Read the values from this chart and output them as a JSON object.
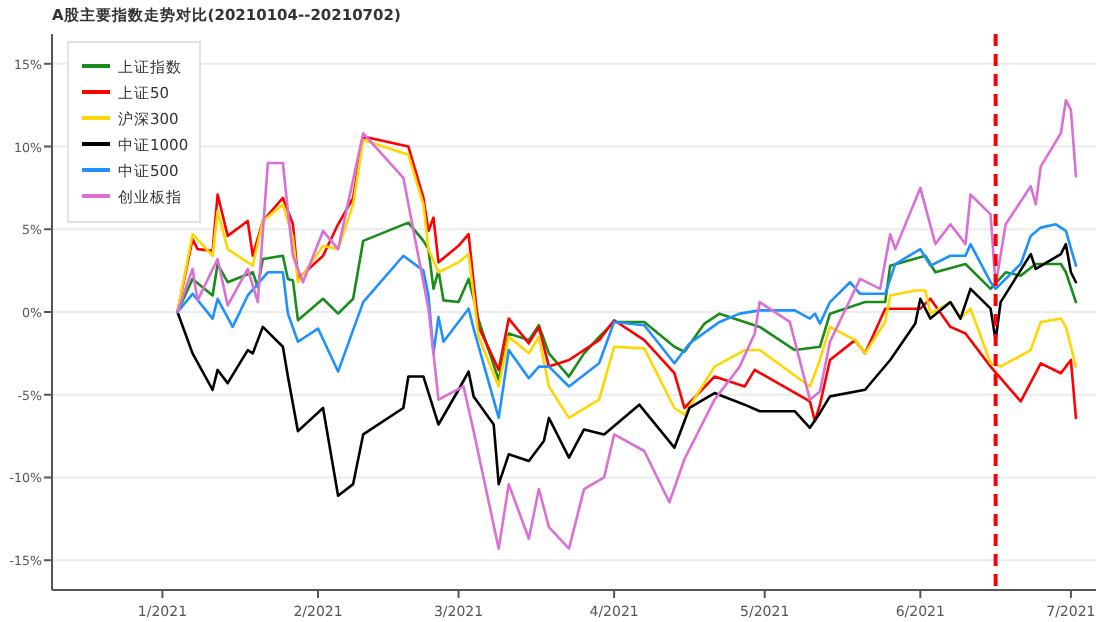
{
  "chart_data": {
    "type": "line",
    "title": "A股主要指数走势对比(20210104--20210702)",
    "xlim": [
      "2020-12-10",
      "2021-07-06"
    ],
    "xticks": [
      {
        "value": "2021-01-01",
        "label": "1/2021"
      },
      {
        "value": "2021-02-01",
        "label": "2/2021"
      },
      {
        "value": "2021-03-01",
        "label": "3/2021"
      },
      {
        "value": "2021-04-01",
        "label": "4/2021"
      },
      {
        "value": "2021-05-01",
        "label": "5/2021"
      },
      {
        "value": "2021-06-01",
        "label": "6/2021"
      },
      {
        "value": "2021-07-01",
        "label": "7/2021"
      }
    ],
    "ylim": [
      -16.8,
      16.8
    ],
    "yticks": [
      {
        "value": -15,
        "label": "-15%"
      },
      {
        "value": -10,
        "label": "-10%"
      },
      {
        "value": -5,
        "label": "-5%"
      },
      {
        "value": 0,
        "label": "0%"
      },
      {
        "value": 5,
        "label": "5%"
      },
      {
        "value": 10,
        "label": "10%"
      },
      {
        "value": 15,
        "label": "15%"
      }
    ],
    "grid": "y",
    "legend": "top left",
    "marker": "none",
    "line_style": "solid",
    "ref_lines": [
      {
        "axis": "x",
        "value": "2021-06-16",
        "label": null,
        "color": "#ff0000",
        "line_style": "dashed"
      }
    ],
    "series": [
      {
        "name": "上证指数",
        "color": "#1a8c1a",
        "x": [
          "2021-01-04",
          "2021-01-07",
          "2021-01-11",
          "2021-01-12",
          "2021-01-14",
          "2021-01-19",
          "2021-01-20",
          "2021-01-21",
          "2021-01-25",
          "2021-01-26",
          "2021-01-27",
          "2021-01-28",
          "2021-02-02",
          "2021-02-05",
          "2021-02-08",
          "2021-02-10",
          "2021-02-19",
          "2021-02-22",
          "2021-02-23",
          "2021-02-24",
          "2021-02-25",
          "2021-02-26",
          "2021-03-01",
          "2021-03-03",
          "2021-03-04",
          "2021-03-05",
          "2021-03-09",
          "2021-03-11",
          "2021-03-15",
          "2021-03-17",
          "2021-03-19",
          "2021-03-23",
          "2021-03-26",
          "2021-03-29",
          "2021-04-01",
          "2021-04-07",
          "2021-04-13",
          "2021-04-15",
          "2021-04-19",
          "2021-04-22",
          "2021-04-30",
          "2021-05-07",
          "2021-05-12",
          "2021-05-14",
          "2021-05-21",
          "2021-05-25",
          "2021-05-26",
          "2021-06-02",
          "2021-06-04",
          "2021-06-10",
          "2021-06-15",
          "2021-06-18",
          "2021-06-21",
          "2021-06-24",
          "2021-06-29",
          "2021-06-30",
          "2021-07-02"
        ],
        "values": [
          0,
          2.0,
          1.0,
          2.9,
          1.8,
          2.4,
          1.5,
          3.2,
          3.4,
          2.0,
          1.9,
          -0.5,
          0.8,
          -0.1,
          0.8,
          4.3,
          5.4,
          4.3,
          3.8,
          1.4,
          2.5,
          0.7,
          0.6,
          2.0,
          0.8,
          -0.5,
          -4.1,
          -1.3,
          -1.7,
          -0.8,
          -2.5,
          -3.9,
          -2.5,
          -1.5,
          -0.6,
          -0.6,
          -2.1,
          -2.4,
          -0.7,
          -0.1,
          -0.9,
          -2.3,
          -2.1,
          -0.1,
          0.6,
          0.6,
          2.8,
          3.4,
          2.4,
          2.9,
          1.4,
          2.4,
          2.2,
          2.9,
          2.9,
          2.4,
          0.6
        ]
      },
      {
        "name": "上证50",
        "color": "#ff0000",
        "x": [
          "2021-01-04",
          "2021-01-07",
          "2021-01-08",
          "2021-01-11",
          "2021-01-12",
          "2021-01-14",
          "2021-01-18",
          "2021-01-19",
          "2021-01-21",
          "2021-01-25",
          "2021-01-27",
          "2021-01-28",
          "2021-02-02",
          "2021-02-05",
          "2021-02-08",
          "2021-02-10",
          "2021-02-19",
          "2021-02-22",
          "2021-02-23",
          "2021-02-24",
          "2021-02-25",
          "2021-03-01",
          "2021-03-03",
          "2021-03-04",
          "2021-03-05",
          "2021-03-09",
          "2021-03-11",
          "2021-03-15",
          "2021-03-17",
          "2021-03-19",
          "2021-03-23",
          "2021-03-29",
          "2021-04-01",
          "2021-04-07",
          "2021-04-13",
          "2021-04-15",
          "2021-04-21",
          "2021-04-27",
          "2021-04-29",
          "2021-05-10",
          "2021-05-11",
          "2021-05-12",
          "2021-05-14",
          "2021-05-19",
          "2021-05-21",
          "2021-05-25",
          "2021-06-01",
          "2021-06-03",
          "2021-06-07",
          "2021-06-10",
          "2021-06-15",
          "2021-06-21",
          "2021-06-25",
          "2021-06-29",
          "2021-07-01",
          "2021-07-02"
        ],
        "values": [
          0,
          4.4,
          3.8,
          3.7,
          7.1,
          4.6,
          5.5,
          3.4,
          5.5,
          6.9,
          5.3,
          2.0,
          3.4,
          5.3,
          6.9,
          10.6,
          10.0,
          6.9,
          4.9,
          5.7,
          3.0,
          4.0,
          4.7,
          1.8,
          -0.9,
          -3.5,
          -0.4,
          -1.9,
          -0.9,
          -3.3,
          -2.9,
          -1.7,
          -0.5,
          -1.7,
          -3.7,
          -5.8,
          -3.9,
          -4.5,
          -3.5,
          -5.4,
          -6.6,
          -5.6,
          -2.9,
          -1.7,
          -2.5,
          0.2,
          0.2,
          0.8,
          -0.9,
          -1.3,
          -3.3,
          -5.4,
          -3.1,
          -3.7,
          -2.9,
          -6.4
        ]
      },
      {
        "name": "沪深300",
        "color": "#ffd700",
        "x": [
          "2021-01-04",
          "2021-01-07",
          "2021-01-11",
          "2021-01-12",
          "2021-01-14",
          "2021-01-19",
          "2021-01-21",
          "2021-01-25",
          "2021-01-27",
          "2021-01-28",
          "2021-02-02",
          "2021-02-05",
          "2021-02-08",
          "2021-02-10",
          "2021-02-19",
          "2021-02-22",
          "2021-02-23",
          "2021-02-25",
          "2021-03-01",
          "2021-03-03",
          "2021-03-04",
          "2021-03-05",
          "2021-03-09",
          "2021-03-11",
          "2021-03-15",
          "2021-03-17",
          "2021-03-19",
          "2021-03-23",
          "2021-03-29",
          "2021-04-01",
          "2021-04-07",
          "2021-04-13",
          "2021-04-15",
          "2021-04-21",
          "2021-04-27",
          "2021-04-30",
          "2021-05-10",
          "2021-05-12",
          "2021-05-14",
          "2021-05-19",
          "2021-05-21",
          "2021-05-25",
          "2021-05-26",
          "2021-05-31",
          "2021-06-02",
          "2021-06-03",
          "2021-06-07",
          "2021-06-09",
          "2021-06-11",
          "2021-06-15",
          "2021-06-17",
          "2021-06-23",
          "2021-06-25",
          "2021-06-29",
          "2021-06-30",
          "2021-07-02"
        ],
        "values": [
          0,
          4.7,
          3.4,
          6.1,
          3.8,
          2.8,
          5.5,
          6.5,
          4.5,
          1.8,
          4.0,
          3.8,
          6.5,
          10.4,
          9.5,
          6.5,
          3.8,
          2.4,
          3.0,
          3.5,
          1.0,
          -1.5,
          -4.5,
          -1.5,
          -2.5,
          -1.5,
          -4.5,
          -6.4,
          -5.3,
          -2.1,
          -2.2,
          -5.8,
          -6.2,
          -3.3,
          -2.3,
          -2.3,
          -4.5,
          -2.9,
          -0.9,
          -1.7,
          -2.5,
          -0.6,
          1.0,
          1.3,
          1.3,
          -0.1,
          0.6,
          -0.4,
          0.2,
          -3.1,
          -3.3,
          -2.3,
          -0.6,
          -0.4,
          -0.9,
          -3.3
        ]
      },
      {
        "name": "中证1000",
        "color": "#000000",
        "x": [
          "2021-01-04",
          "2021-01-07",
          "2021-01-11",
          "2021-01-12",
          "2021-01-14",
          "2021-01-18",
          "2021-01-19",
          "2021-01-21",
          "2021-01-25",
          "2021-01-26",
          "2021-01-28",
          "2021-02-02",
          "2021-02-05",
          "2021-02-08",
          "2021-02-10",
          "2021-02-18",
          "2021-02-19",
          "2021-02-22",
          "2021-02-25",
          "2021-03-01",
          "2021-03-03",
          "2021-03-04",
          "2021-03-08",
          "2021-03-09",
          "2021-03-11",
          "2021-03-15",
          "2021-03-18",
          "2021-03-19",
          "2021-03-23",
          "2021-03-26",
          "2021-03-30",
          "2021-04-06",
          "2021-04-13",
          "2021-04-16",
          "2021-04-21",
          "2021-04-27",
          "2021-04-30",
          "2021-05-07",
          "2021-05-10",
          "2021-05-12",
          "2021-05-14",
          "2021-05-21",
          "2021-05-26",
          "2021-05-31",
          "2021-06-01",
          "2021-06-03",
          "2021-06-07",
          "2021-06-09",
          "2021-06-11",
          "2021-06-15",
          "2021-06-16",
          "2021-06-17",
          "2021-06-23",
          "2021-06-24",
          "2021-06-29",
          "2021-06-30",
          "2021-07-01",
          "2021-07-02"
        ],
        "values": [
          0,
          -2.5,
          -4.7,
          -3.5,
          -4.3,
          -2.3,
          -2.5,
          -0.9,
          -2.1,
          -3.9,
          -7.2,
          -5.8,
          -11.1,
          -10.4,
          -7.4,
          -5.8,
          -3.9,
          -3.9,
          -6.8,
          -4.7,
          -3.6,
          -5.1,
          -6.8,
          -10.4,
          -8.6,
          -9.0,
          -7.8,
          -6.4,
          -8.8,
          -7.1,
          -7.4,
          -5.6,
          -8.2,
          -5.8,
          -4.9,
          -5.6,
          -6.0,
          -6.0,
          -7.0,
          -6.1,
          -5.1,
          -4.7,
          -2.9,
          -0.7,
          0.8,
          -0.4,
          0.6,
          -0.4,
          1.4,
          0.2,
          -1.7,
          0.6,
          3.5,
          2.6,
          3.5,
          4.1,
          2.4,
          1.8
        ]
      },
      {
        "name": "中证500",
        "color": "#1e90ff",
        "x": [
          "2021-01-04",
          "2021-01-07",
          "2021-01-11",
          "2021-01-12",
          "2021-01-15",
          "2021-01-18",
          "2021-01-22",
          "2021-01-25",
          "2021-01-26",
          "2021-01-28",
          "2021-02-01",
          "2021-02-05",
          "2021-02-10",
          "2021-02-18",
          "2021-02-22",
          "2021-02-23",
          "2021-02-24",
          "2021-02-25",
          "2021-02-26",
          "2021-03-03",
          "2021-03-04",
          "2021-03-09",
          "2021-03-11",
          "2021-03-15",
          "2021-03-17",
          "2021-03-19",
          "2021-03-23",
          "2021-03-29",
          "2021-04-01",
          "2021-04-07",
          "2021-04-13",
          "2021-04-16",
          "2021-04-22",
          "2021-04-26",
          "2021-04-30",
          "2021-05-07",
          "2021-05-10",
          "2021-05-11",
          "2021-05-12",
          "2021-05-14",
          "2021-05-18",
          "2021-05-20",
          "2021-05-25",
          "2021-05-27",
          "2021-06-01",
          "2021-06-03",
          "2021-06-07",
          "2021-06-10",
          "2021-06-11",
          "2021-06-15",
          "2021-06-16",
          "2021-06-21",
          "2021-06-23",
          "2021-06-25",
          "2021-06-28",
          "2021-06-30",
          "2021-07-02"
        ],
        "values": [
          0,
          1.1,
          -0.4,
          0.8,
          -0.9,
          1.0,
          2.4,
          2.4,
          -0.1,
          -1.8,
          -1.0,
          -3.6,
          0.6,
          3.4,
          2.5,
          1.0,
          -2.5,
          -0.3,
          -1.8,
          0.2,
          -1.0,
          -6.4,
          -2.3,
          -4.0,
          -3.3,
          -3.3,
          -4.5,
          -3.1,
          -0.6,
          -0.8,
          -3.1,
          -1.9,
          -0.6,
          -0.1,
          0.1,
          0.1,
          -0.4,
          -0.1,
          -0.7,
          0.6,
          1.8,
          1.1,
          1.1,
          2.9,
          3.8,
          2.8,
          3.4,
          3.4,
          4.1,
          1.8,
          1.4,
          2.9,
          4.6,
          5.1,
          5.3,
          4.9,
          2.8
        ]
      },
      {
        "name": "创业板指",
        "color": "#da70d6",
        "x": [
          "2021-01-04",
          "2021-01-07",
          "2021-01-08",
          "2021-01-12",
          "2021-01-14",
          "2021-01-18",
          "2021-01-20",
          "2021-01-22",
          "2021-01-25",
          "2021-01-26",
          "2021-01-27",
          "2021-01-29",
          "2021-02-02",
          "2021-02-05",
          "2021-02-10",
          "2021-02-18",
          "2021-02-23",
          "2021-02-24",
          "2021-02-25",
          "2021-03-02",
          "2021-03-04",
          "2021-03-09",
          "2021-03-11",
          "2021-03-15",
          "2021-03-17",
          "2021-03-19",
          "2021-03-23",
          "2021-03-26",
          "2021-03-30",
          "2021-04-01",
          "2021-04-07",
          "2021-04-12",
          "2021-04-15",
          "2021-04-21",
          "2021-04-26",
          "2021-04-29",
          "2021-04-30",
          "2021-05-06",
          "2021-05-10",
          "2021-05-12",
          "2021-05-14",
          "2021-05-20",
          "2021-05-24",
          "2021-05-26",
          "2021-05-27",
          "2021-06-01",
          "2021-06-04",
          "2021-06-07",
          "2021-06-10",
          "2021-06-11",
          "2021-06-15",
          "2021-06-16",
          "2021-06-18",
          "2021-06-23",
          "2021-06-24",
          "2021-06-25",
          "2021-06-29",
          "2021-06-30",
          "2021-07-01",
          "2021-07-02"
        ],
        "values": [
          0,
          2.6,
          0.7,
          3.2,
          0.4,
          2.6,
          0.6,
          9.0,
          9.0,
          6.1,
          3.4,
          1.8,
          4.9,
          3.8,
          10.8,
          8.1,
          0.2,
          -2.5,
          -5.3,
          -4.5,
          -7.2,
          -14.3,
          -10.4,
          -13.7,
          -10.7,
          -13.0,
          -14.3,
          -10.7,
          -10.0,
          -7.4,
          -8.4,
          -11.5,
          -8.9,
          -5.3,
          -3.3,
          -1.3,
          0.6,
          -0.6,
          -5.3,
          -4.8,
          -1.8,
          2.0,
          1.4,
          4.7,
          3.8,
          7.5,
          4.1,
          5.3,
          4.1,
          7.1,
          5.9,
          1.6,
          5.3,
          7.6,
          6.5,
          8.8,
          10.8,
          12.8,
          12.2,
          8.2
        ]
      }
    ]
  }
}
